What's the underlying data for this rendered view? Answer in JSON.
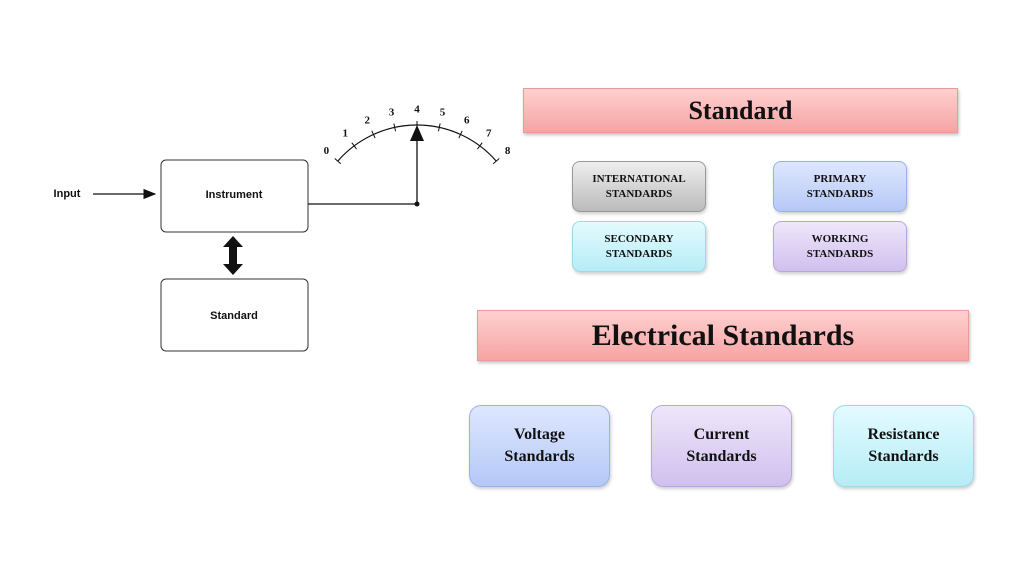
{
  "diagram": {
    "input": "Input",
    "instrument": "Instrument",
    "standard_box": "Standard",
    "dial": [
      0,
      1,
      2,
      3,
      4,
      5,
      6,
      7,
      8
    ]
  },
  "standard": {
    "title": "Standard",
    "items": [
      [
        "INTERNATIONAL",
        "STANDARDS"
      ],
      [
        "PRIMARY",
        "STANDARDS"
      ],
      [
        "SECONDARY",
        "STANDARDS"
      ],
      [
        "WORKING",
        "STANDARDS"
      ]
    ]
  },
  "electrical": {
    "title": "Electrical Standards",
    "items": [
      [
        "Voltage",
        "Standards"
      ],
      [
        "Current",
        "Standards"
      ],
      [
        "Resistance",
        "Standards"
      ]
    ]
  }
}
